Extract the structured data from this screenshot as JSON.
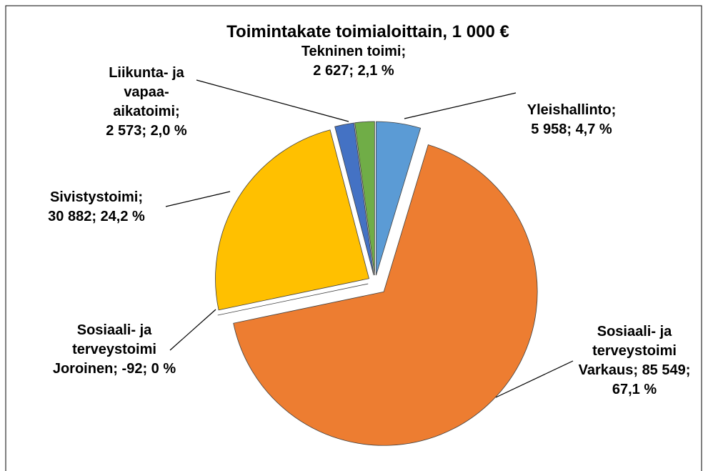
{
  "chart_data": {
    "type": "pie",
    "title": "Toimintakate toimialoittain, 1 000 €",
    "separator": ";",
    "categories": [
      "Yleishallinto",
      "Sosiaali- ja terveystoimi Varkaus",
      "Sosiaali- ja terveystoimi Joroinen",
      "Sivistystoimi",
      "Liikunta- ja vapaa-aikatoimi",
      "Tekninen toimi"
    ],
    "values": [
      5958,
      85549,
      -92,
      30882,
      2573,
      2627
    ],
    "value_labels": [
      "5 958",
      "85 549",
      "-92",
      "30 882",
      "2 573",
      "2 627"
    ],
    "percentages": [
      4.7,
      67.1,
      0,
      24.2,
      2.0,
      2.1
    ],
    "percentage_labels": [
      "4,7 %",
      "67,1 %",
      "0 %",
      "24,2 %",
      "2,0 %",
      "2,1 %"
    ],
    "colors": [
      "#5b9bd5",
      "#ed7d31",
      "#a5a5a5",
      "#ffc000",
      "#4472c4",
      "#70ad47"
    ]
  }
}
